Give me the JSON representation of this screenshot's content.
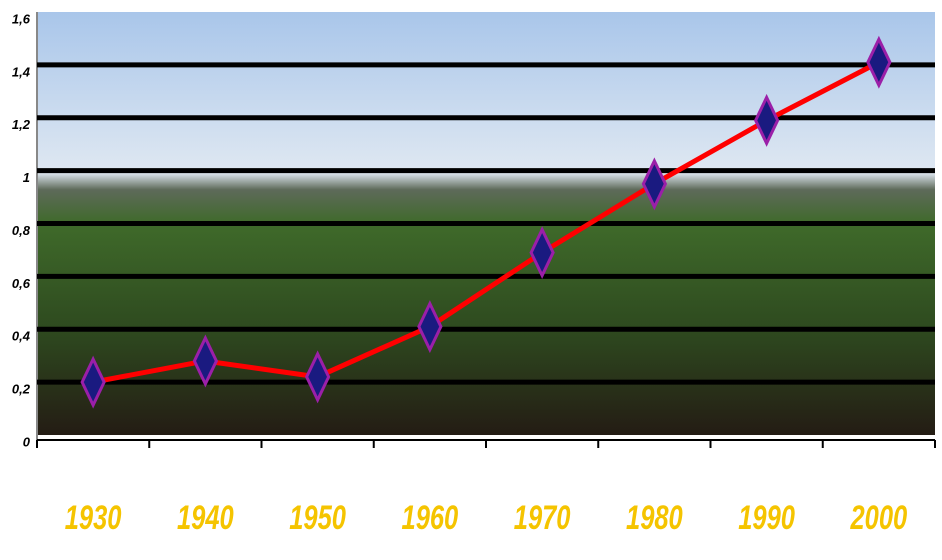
{
  "chart_data": {
    "type": "line",
    "categories": [
      "1930",
      "1940",
      "1950",
      "1960",
      "1970",
      "1980",
      "1990",
      "2000"
    ],
    "series": [
      {
        "color": "#ff0000",
        "values": [
          0.2,
          0.28,
          0.22,
          0.41,
          0.69,
          0.95,
          1.19,
          1.41
        ]
      }
    ],
    "ylim": [
      0,
      1.6
    ],
    "yticks": [
      0,
      {
        "value": 0.2,
        "label": "0,2"
      },
      {
        "value": 0.4,
        "label": "0,4"
      },
      {
        "value": 0.6,
        "label": "0,6"
      },
      {
        "value": 0.8,
        "label": "0,8"
      },
      1,
      {
        "value": 1.2,
        "label": "1,2"
      },
      {
        "value": 1.4,
        "label": "1,4"
      },
      {
        "value": 1.6,
        "label": "1,6"
      }
    ],
    "grid": true
  }
}
